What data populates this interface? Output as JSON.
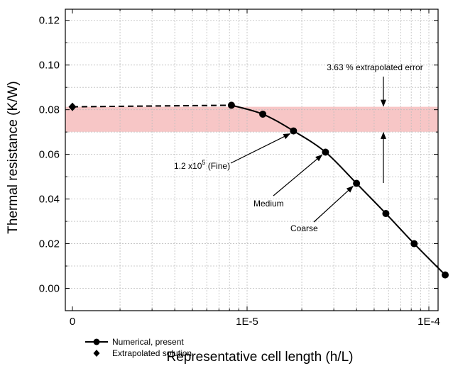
{
  "chart_data": {
    "type": "line",
    "xlabel": "Representative cell length (h/L)",
    "ylabel": "Thermal resistance (K/W)",
    "x_scale": "log (with break to 0)",
    "ylim": [
      -0.01,
      0.125
    ],
    "x_ticks": [
      "0",
      "1E-5",
      "1E-4"
    ],
    "y_ticks": [
      "0.00",
      "0.02",
      "0.04",
      "0.06",
      "0.08",
      "0.10",
      "0.12"
    ],
    "grid": true,
    "series": [
      {
        "name": "Numerical, present",
        "marker": "circle",
        "x": [
          8.2e-06,
          1.22e-05,
          1.8e-05,
          2.7e-05,
          4e-05,
          5.8e-05,
          8.3e-05,
          0.000123
        ],
        "y": [
          0.082,
          0.078,
          0.0705,
          0.061,
          0.047,
          0.0335,
          0.02,
          0.006
        ]
      },
      {
        "name": "Extrapolated solution",
        "marker": "diamond",
        "x": [
          0
        ],
        "y": [
          0.0813
        ]
      }
    ],
    "error_band": [
      0.0701,
      0.0813
    ],
    "annotations": {
      "error": "3.63 % extrapolated error",
      "fine_base": "1.2 x10",
      "fine_exp": "5",
      "fine_suffix": " (Fine)",
      "medium": "Medium",
      "coarse": "Coarse"
    },
    "legend_position": "bottom-left",
    "colors": {
      "band": "#f7c6c6",
      "line": "#000000"
    }
  }
}
